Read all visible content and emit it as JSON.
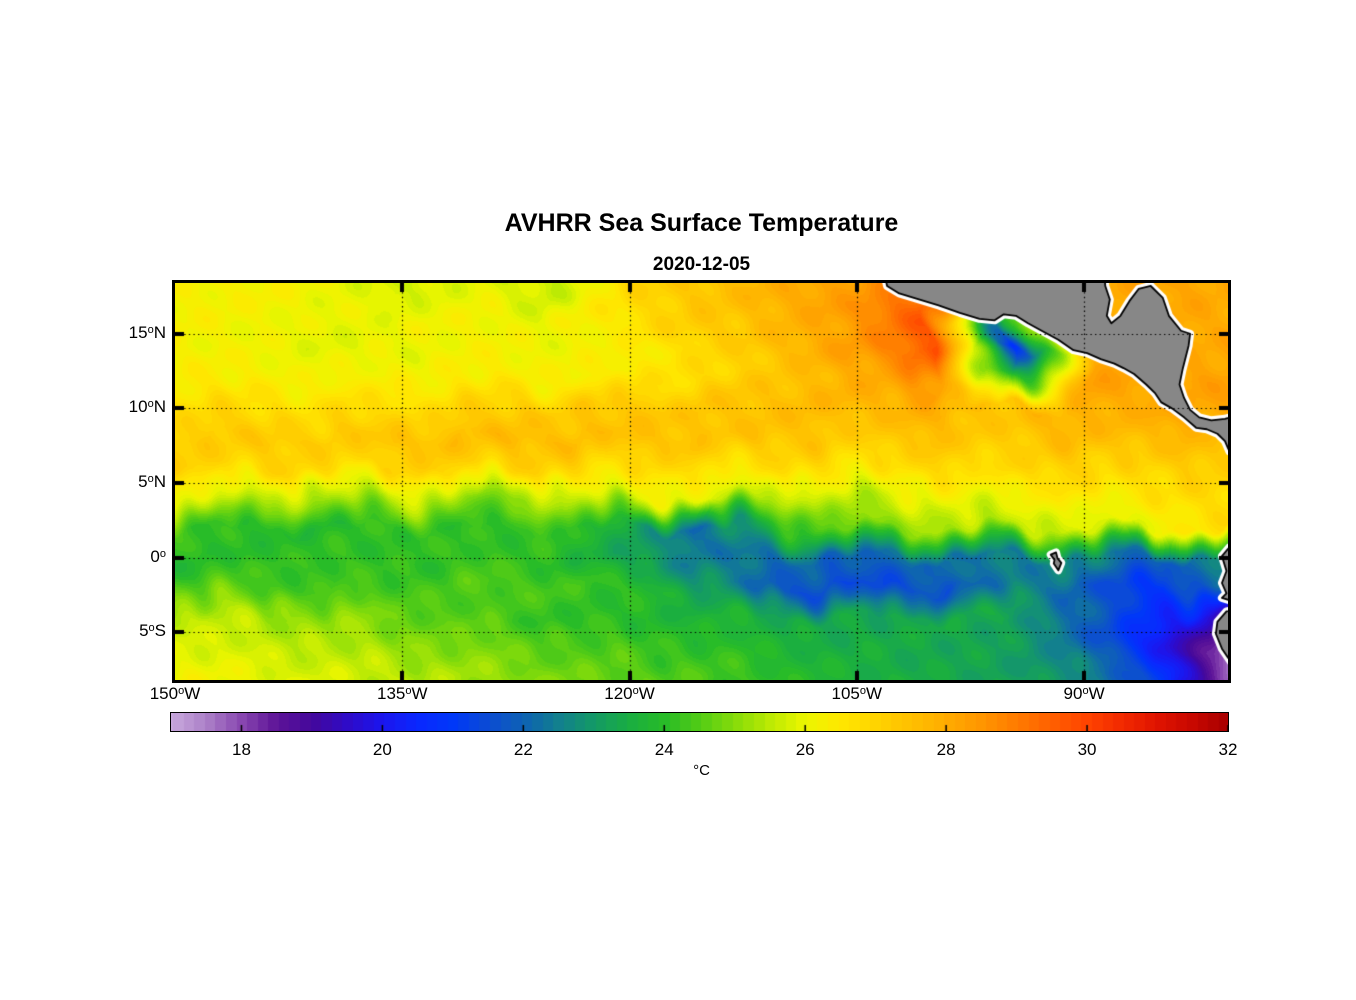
{
  "chart_data": {
    "type": "heatmap",
    "title": "AVHRR Sea Surface Temperature",
    "subtitle": "2020-12-05",
    "projection": {
      "lon_min": -150,
      "lon_max": -80.5,
      "lat_min": -8.2,
      "lat_max": 18.4
    },
    "x_ticks": [
      {
        "lon": -150,
        "pre": "150",
        "sup": "o",
        "post": "W"
      },
      {
        "lon": -135,
        "pre": "135",
        "sup": "o",
        "post": "W"
      },
      {
        "lon": -120,
        "pre": "120",
        "sup": "o",
        "post": "W"
      },
      {
        "lon": -105,
        "pre": "105",
        "sup": "o",
        "post": "W"
      },
      {
        "lon": -90,
        "pre": "90",
        "sup": "o",
        "post": "W"
      }
    ],
    "y_ticks": [
      {
        "lat": 15,
        "pre": "15",
        "sup": "o",
        "post": "N"
      },
      {
        "lat": 10,
        "pre": "10",
        "sup": "o",
        "post": "N"
      },
      {
        "lat": 5,
        "pre": "5",
        "sup": "o",
        "post": "N"
      },
      {
        "lat": 0,
        "pre": "0",
        "sup": "o",
        "post": ""
      },
      {
        "lat": -5,
        "pre": "5",
        "sup": "o",
        "post": "S"
      }
    ],
    "grid": {
      "lons": [
        -150,
        -145,
        -140,
        -135,
        -130,
        -125,
        -120,
        -115,
        -110,
        -105,
        -100,
        -95,
        -90,
        -85,
        -80
      ],
      "lats": [
        18,
        16,
        14,
        12,
        10,
        8,
        6,
        4,
        2,
        0,
        -2,
        -4,
        -6,
        -8
      ],
      "sst_c": [
        [
          26.2,
          26.3,
          26.1,
          25.7,
          26.0,
          25.6,
          26.9,
          27.4,
          27.9,
          28.4,
          29.3,
          28.5,
          28.0,
          28.2,
          28.0
        ],
        [
          26.3,
          26.2,
          26.0,
          26.1,
          26.2,
          26.0,
          26.6,
          27.2,
          27.7,
          28.3,
          29.7,
          23.5,
          27.9,
          28.2,
          28.0
        ],
        [
          26.2,
          26.1,
          25.9,
          26.0,
          26.2,
          26.1,
          26.3,
          26.9,
          27.5,
          28.4,
          29.7,
          20.8,
          27.9,
          27.9,
          28.1
        ],
        [
          26.4,
          26.3,
          26.2,
          26.3,
          26.4,
          26.3,
          26.5,
          26.9,
          27.4,
          28.1,
          28.5,
          23.2,
          28.3,
          28.3,
          28.2
        ],
        [
          26.8,
          26.8,
          26.7,
          26.8,
          27.0,
          27.2,
          27.3,
          27.4,
          27.5,
          27.7,
          27.9,
          27.4,
          27.9,
          28.1,
          28.2
        ],
        [
          27.2,
          27.3,
          27.2,
          27.4,
          27.6,
          27.6,
          27.5,
          27.4,
          27.4,
          27.2,
          27.4,
          27.2,
          27.6,
          27.6,
          27.5
        ],
        [
          27.0,
          26.9,
          26.8,
          27.0,
          27.0,
          26.9,
          26.8,
          26.7,
          26.7,
          26.6,
          26.8,
          26.9,
          27.0,
          27.0,
          27.2
        ],
        [
          26.0,
          25.6,
          25.2,
          25.6,
          25.0,
          25.4,
          26.0,
          25.8,
          25.4,
          25.6,
          26.0,
          26.2,
          26.4,
          26.6,
          26.9
        ],
        [
          24.4,
          24.0,
          23.8,
          24.2,
          24.0,
          24.2,
          23.6,
          22.0,
          23.8,
          24.8,
          25.2,
          25.4,
          25.6,
          26.1,
          26.8
        ],
        [
          23.8,
          24.0,
          24.2,
          24.0,
          24.2,
          24.0,
          23.2,
          22.4,
          22.2,
          22.0,
          22.2,
          22.4,
          22.8,
          21.8,
          22.8
        ],
        [
          24.6,
          24.4,
          24.2,
          24.3,
          24.5,
          24.3,
          24.0,
          23.0,
          21.6,
          21.4,
          21.6,
          22.6,
          21.8,
          20.8,
          23.0
        ],
        [
          25.6,
          25.4,
          25.1,
          24.7,
          24.4,
          24.1,
          23.9,
          23.7,
          23.4,
          23.2,
          23.4,
          23.3,
          22.0,
          20.4,
          19.0
        ],
        [
          25.9,
          25.7,
          25.5,
          25.2,
          24.9,
          24.6,
          24.3,
          24.1,
          23.8,
          23.5,
          23.4,
          23.2,
          22.4,
          20.4,
          17.8
        ],
        [
          26.2,
          26.0,
          25.8,
          25.5,
          25.2,
          24.9,
          24.6,
          24.4,
          24.0,
          23.6,
          23.4,
          23.2,
          22.8,
          21.0,
          17.3
        ]
      ]
    },
    "land": {
      "color": "#878787",
      "outline_color": "#000000",
      "fringe_color": "#ffffff",
      "polygons": {
        "central_america": [
          [
            -103.3,
            19.5
          ],
          [
            -103.0,
            18.2
          ],
          [
            -102.2,
            17.7
          ],
          [
            -100.9,
            17.3
          ],
          [
            -99.6,
            16.9
          ],
          [
            -98.2,
            16.4
          ],
          [
            -96.9,
            16.0
          ],
          [
            -95.9,
            15.9
          ],
          [
            -95.3,
            16.3
          ],
          [
            -94.5,
            16.2
          ],
          [
            -93.7,
            15.7
          ],
          [
            -92.8,
            15.2
          ],
          [
            -91.7,
            14.6
          ],
          [
            -90.7,
            13.9
          ],
          [
            -89.8,
            13.7
          ],
          [
            -88.9,
            13.3
          ],
          [
            -88.0,
            13.0
          ],
          [
            -87.4,
            12.7
          ],
          [
            -86.7,
            12.3
          ],
          [
            -85.9,
            11.6
          ],
          [
            -85.3,
            11.0
          ],
          [
            -84.9,
            10.4
          ],
          [
            -84.2,
            10.0
          ],
          [
            -83.4,
            9.4
          ],
          [
            -82.6,
            8.7
          ],
          [
            -81.9,
            8.6
          ],
          [
            -81.2,
            8.3
          ],
          [
            -80.7,
            7.8
          ],
          [
            -80.4,
            7.1
          ],
          [
            -79.6,
            6.9
          ],
          [
            -79.6,
            9.6
          ],
          [
            -80.7,
            9.3
          ],
          [
            -81.6,
            9.2
          ],
          [
            -82.4,
            9.4
          ],
          [
            -83.0,
            9.9
          ],
          [
            -83.4,
            10.7
          ],
          [
            -83.7,
            11.6
          ],
          [
            -83.5,
            12.6
          ],
          [
            -83.1,
            14.2
          ],
          [
            -83.0,
            15.0
          ],
          [
            -83.6,
            15.2
          ],
          [
            -84.4,
            16.2
          ],
          [
            -84.8,
            17.4
          ],
          [
            -85.6,
            18.2
          ],
          [
            -86.4,
            18.0
          ],
          [
            -87.0,
            17.2
          ],
          [
            -87.6,
            16.2
          ],
          [
            -88.2,
            15.7
          ],
          [
            -88.5,
            16.2
          ],
          [
            -88.3,
            17.3
          ],
          [
            -88.6,
            18.2
          ],
          [
            -88.7,
            19.5
          ]
        ],
        "ecuador": [
          [
            -79.6,
            0.9
          ],
          [
            -80.4,
            0.7
          ],
          [
            -80.9,
            0.1
          ],
          [
            -80.6,
            -0.9
          ],
          [
            -80.9,
            -1.7
          ],
          [
            -80.6,
            -2.4
          ],
          [
            -80.9,
            -2.7
          ],
          [
            -79.6,
            -3.1
          ]
        ],
        "peru": [
          [
            -79.6,
            -3.4
          ],
          [
            -80.6,
            -3.6
          ],
          [
            -81.2,
            -4.3
          ],
          [
            -81.3,
            -5.1
          ],
          [
            -80.9,
            -6.1
          ],
          [
            -80.3,
            -7.0
          ],
          [
            -79.5,
            -7.9
          ]
        ],
        "galapagos": [
          [
            -92.2,
            0.2
          ],
          [
            -91.85,
            0.35
          ],
          [
            -91.75,
            -0.05
          ],
          [
            -91.5,
            -0.35
          ],
          [
            -91.7,
            -0.85
          ],
          [
            -92.0,
            -0.4
          ],
          [
            -91.95,
            -0.15
          ]
        ]
      }
    },
    "colorbar": {
      "min_c": 17,
      "max_c": 32,
      "ticks": [
        18,
        20,
        22,
        24,
        26,
        28,
        30,
        32
      ],
      "unit": "°C",
      "colormap": [
        [
          17.0,
          "#C8A8DC"
        ],
        [
          17.5,
          "#AC80C8"
        ],
        [
          18.0,
          "#8846B0"
        ],
        [
          18.5,
          "#5E1498"
        ],
        [
          19.0,
          "#44089C"
        ],
        [
          19.5,
          "#2F0BC8"
        ],
        [
          20.0,
          "#1C16EE"
        ],
        [
          20.5,
          "#0A28FF"
        ],
        [
          21.0,
          "#0038F8"
        ],
        [
          21.5,
          "#0C4CD4"
        ],
        [
          22.0,
          "#0E62B4"
        ],
        [
          22.5,
          "#12808E"
        ],
        [
          23.0,
          "#149A66"
        ],
        [
          23.5,
          "#1AAE42"
        ],
        [
          24.0,
          "#28BC28"
        ],
        [
          24.5,
          "#52CC16"
        ],
        [
          25.0,
          "#86DC0A"
        ],
        [
          25.5,
          "#BCEA04"
        ],
        [
          26.0,
          "#ECF600"
        ],
        [
          26.5,
          "#FFE800"
        ],
        [
          27.0,
          "#FFD400"
        ],
        [
          27.5,
          "#FFC000"
        ],
        [
          28.0,
          "#FFAC00"
        ],
        [
          28.5,
          "#FF9600"
        ],
        [
          29.0,
          "#FF7C00"
        ],
        [
          29.5,
          "#FF6000"
        ],
        [
          30.0,
          "#FF4400"
        ],
        [
          30.5,
          "#F22A00"
        ],
        [
          31.0,
          "#E01400"
        ],
        [
          31.5,
          "#C80800"
        ],
        [
          32.0,
          "#A80000"
        ]
      ]
    }
  }
}
